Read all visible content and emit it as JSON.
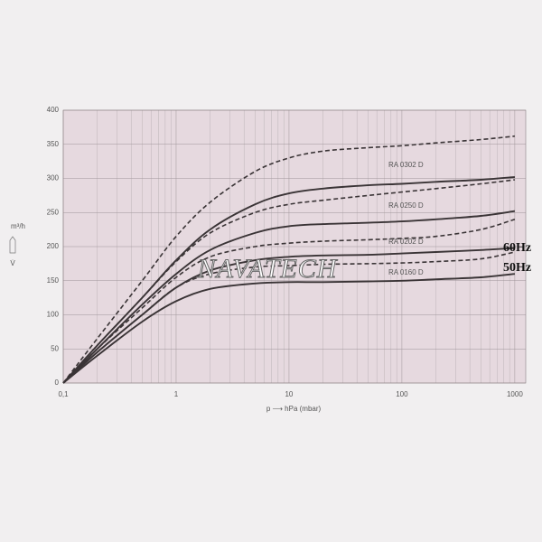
{
  "chart_data": {
    "type": "line",
    "log_x": true,
    "grid": true,
    "x_label": "p ⟶ hPa (mbar)",
    "y_label": "m³/h",
    "y_symbol": "V̇",
    "watermark": "NAVATECH",
    "x": [
      0.1,
      0.2,
      0.5,
      1,
      2,
      5,
      10,
      20,
      50,
      100,
      200,
      500,
      1000
    ],
    "xlim": [
      0.1,
      1250
    ],
    "xticks": [
      {
        "value": 0.1,
        "label": "0,1"
      },
      1,
      10,
      100,
      1000
    ],
    "ylim": [
      0,
      400
    ],
    "yticks": [
      0,
      50,
      100,
      150,
      200,
      250,
      300,
      350,
      400
    ],
    "series": [
      {
        "name": "RA 0302 D",
        "frequency": "60Hz",
        "dashed": true,
        "color": "#3a3436",
        "values": [
          0,
          65,
          150,
          215,
          265,
          310,
          330,
          340,
          345,
          348,
          352,
          357,
          362
        ]
      },
      {
        "name": "RA 0302 D",
        "frequency": "50Hz",
        "dashed": false,
        "color": "#3a3436",
        "values": [
          0,
          55,
          125,
          180,
          225,
          262,
          278,
          285,
          290,
          292,
          295,
          298,
          302
        ]
      },
      {
        "name": "RA 0250 D",
        "frequency": "60Hz",
        "dashed": true,
        "color": "#3a3436",
        "values": [
          0,
          55,
          125,
          178,
          220,
          250,
          262,
          268,
          275,
          280,
          285,
          292,
          298
        ]
      },
      {
        "name": "RA 0250 D",
        "frequency": "50Hz",
        "dashed": false,
        "color": "#3a3436",
        "values": [
          0,
          50,
          115,
          160,
          195,
          220,
          230,
          233,
          235,
          237,
          240,
          245,
          252
        ]
      },
      {
        "name": "RA 0202 D",
        "frequency": "60Hz",
        "dashed": true,
        "color": "#3a3436",
        "values": [
          0,
          50,
          110,
          155,
          185,
          200,
          205,
          208,
          210,
          212,
          215,
          225,
          240
        ]
      },
      {
        "name": "RA 0202 D",
        "frequency": "50Hz",
        "dashed": false,
        "color": "#3a3436",
        "values": [
          0,
          45,
          100,
          140,
          165,
          180,
          185,
          187,
          188,
          190,
          192,
          195,
          198
        ]
      },
      {
        "name": "RA 0160 D",
        "frequency": "60Hz",
        "dashed": true,
        "color": "#3a3436",
        "values": [
          0,
          45,
          100,
          140,
          160,
          170,
          172,
          174,
          175,
          176,
          178,
          182,
          192
        ]
      },
      {
        "name": "RA 0160 D",
        "frequency": "50Hz",
        "dashed": false,
        "color": "#3a3436",
        "values": [
          0,
          40,
          90,
          120,
          138,
          146,
          148,
          148,
          149,
          150,
          152,
          155,
          160
        ]
      }
    ]
  }
}
